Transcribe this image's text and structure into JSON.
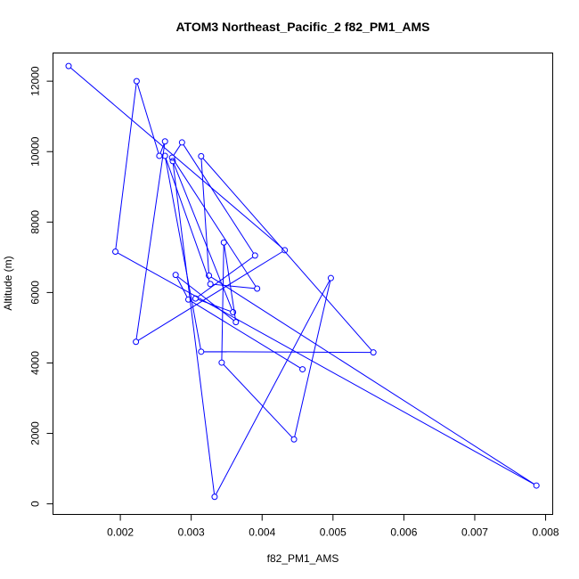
{
  "chart_data": {
    "type": "scatter",
    "title": "ATOM3 Northeast_Pacific_2 f82_PM1_AMS",
    "xlabel": "f82_PM1_AMS",
    "ylabel": "Altitude (m)",
    "xlim": [
      0.00105,
      0.0081
    ],
    "ylim": [
      -300,
      12800
    ],
    "xticks": [
      0.002,
      0.003,
      0.004,
      0.005,
      0.006,
      0.007,
      0.008
    ],
    "xtick_labels": [
      "0.002",
      "0.003",
      "0.004",
      "0.005",
      "0.006",
      "0.007",
      "0.008"
    ],
    "yticks": [
      0,
      2000,
      4000,
      6000,
      8000,
      10000,
      12000
    ],
    "ytick_labels": [
      "0",
      "2000",
      "4000",
      "6000",
      "8000",
      "10000",
      "12000"
    ],
    "grid": false,
    "line_color": "#0000ff",
    "series": [
      {
        "style": "points-and-lines",
        "x": [
          0.00127,
          0.00432,
          0.00222,
          0.00263,
          0.00255,
          0.00223,
          0.00193,
          0.00787,
          0.00325,
          0.00314,
          0.00557,
          0.00314,
          0.00263,
          0.00327,
          0.00393,
          0.00273,
          0.00287,
          0.0039,
          0.00306,
          0.00359,
          0.00274,
          0.00333,
          0.00497,
          0.00445,
          0.00343,
          0.00346,
          0.00363,
          0.00278,
          0.00296,
          0.00457
        ],
        "y": [
          12430,
          7200,
          4600,
          10290,
          9880,
          12000,
          7160,
          520,
          6480,
          9870,
          4300,
          4320,
          9880,
          6240,
          6110,
          9830,
          10260,
          7050,
          5830,
          5440,
          9730,
          200,
          6410,
          1830,
          4010,
          7420,
          5160,
          6500,
          5800,
          3820
        ]
      }
    ]
  }
}
